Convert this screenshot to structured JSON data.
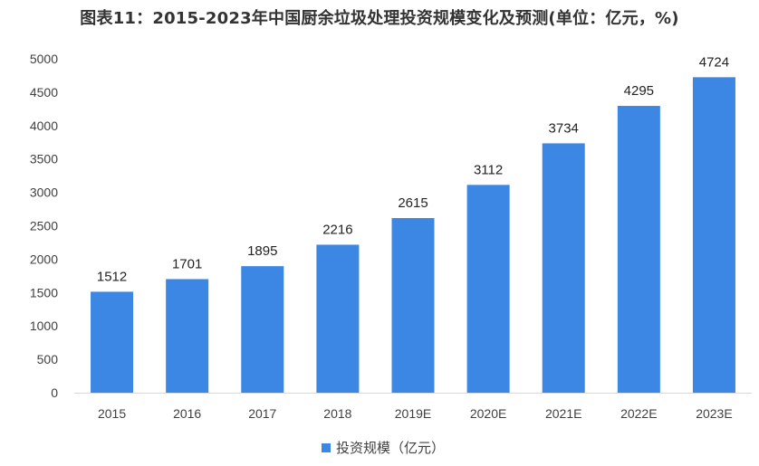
{
  "chart_data": {
    "type": "bar",
    "title": "图表11：2015-2023年中国厨余垃圾处理投资规模变化及预测(单位：亿元，%)",
    "categories": [
      "2015",
      "2016",
      "2017",
      "2018",
      "2019E",
      "2020E",
      "2021E",
      "2022E",
      "2023E"
    ],
    "series": [
      {
        "name": "投资规模（亿元）",
        "values": [
          1512,
          1701,
          1895,
          2216,
          2615,
          3112,
          3734,
          4295,
          4724
        ]
      }
    ],
    "ylim": [
      0,
      5000
    ],
    "yticks": [
      "0",
      "500",
      "1000",
      "1500",
      "2000",
      "2500",
      "3000",
      "3500",
      "4000",
      "4500",
      "5000"
    ],
    "xlabel": "",
    "ylabel": "",
    "grid": false,
    "legend": "bottom",
    "colors": {
      "bar": "#3B87E3",
      "axis": "#D9D9D9"
    }
  }
}
